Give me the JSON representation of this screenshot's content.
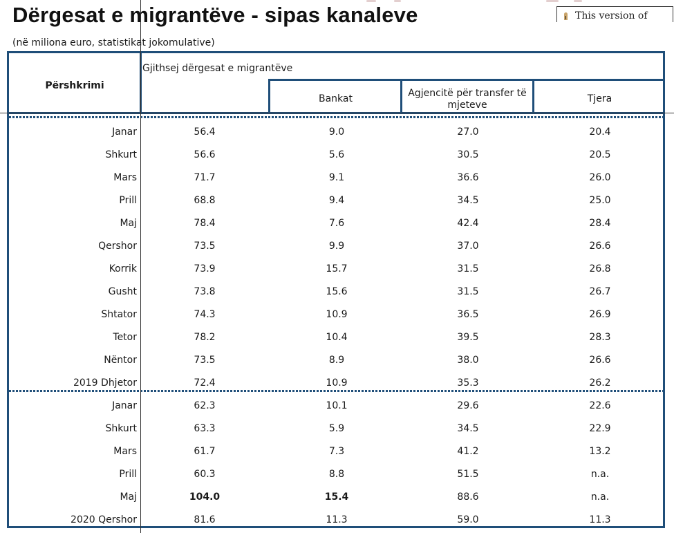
{
  "title": "Dërgesat e migrantëve - sipas kanaleve",
  "subtitle": "(në miliona euro, statistikat jokomulative)",
  "version_notice": {
    "icon": "lock-icon",
    "text": "This version of"
  },
  "table": {
    "header": {
      "description": "Përshkrimi",
      "group": "Gjithsej dërgesat e migrantëve",
      "columns": [
        "Bankat",
        "Agjencitë për transfer të mjeteve",
        "Tjera"
      ]
    },
    "colors": {
      "border": "#1f4e79"
    },
    "sections": [
      {
        "rows": [
          {
            "label": "Janar",
            "total": "56.4",
            "bankat": "9.0",
            "agjencite": "27.0",
            "tjera": "20.4"
          },
          {
            "label": "Shkurt",
            "total": "56.6",
            "bankat": "5.6",
            "agjencite": "30.5",
            "tjera": "20.5"
          },
          {
            "label": "Mars",
            "total": "71.7",
            "bankat": "9.1",
            "agjencite": "36.6",
            "tjera": "26.0"
          },
          {
            "label": "Prill",
            "total": "68.8",
            "bankat": "9.4",
            "agjencite": "34.5",
            "tjera": "25.0"
          },
          {
            "label": "Maj",
            "total": "78.4",
            "bankat": "7.6",
            "agjencite": "42.4",
            "tjera": "28.4"
          },
          {
            "label": "Qershor",
            "total": "73.5",
            "bankat": "9.9",
            "agjencite": "37.0",
            "tjera": "26.6"
          },
          {
            "label": "Korrik",
            "total": "73.9",
            "bankat": "15.7",
            "agjencite": "31.5",
            "tjera": "26.8"
          },
          {
            "label": "Gusht",
            "total": "73.8",
            "bankat": "15.6",
            "agjencite": "31.5",
            "tjera": "26.7"
          },
          {
            "label": "Shtator",
            "total": "74.3",
            "bankat": "10.9",
            "agjencite": "36.5",
            "tjera": "26.9"
          },
          {
            "label": "Tetor",
            "total": "78.2",
            "bankat": "10.4",
            "agjencite": "39.5",
            "tjera": "28.3"
          },
          {
            "label": "Nëntor",
            "total": "73.5",
            "bankat": "8.9",
            "agjencite": "38.0",
            "tjera": "26.6"
          },
          {
            "label": "2019 Dhjetor",
            "total": "72.4",
            "bankat": "10.9",
            "agjencite": "35.3",
            "tjera": "26.2"
          }
        ]
      },
      {
        "rows": [
          {
            "label": "Janar",
            "total": "62.3",
            "bankat": "10.1",
            "agjencite": "29.6",
            "tjera": "22.6"
          },
          {
            "label": "Shkurt",
            "total": "63.3",
            "bankat": "5.9",
            "agjencite": "34.5",
            "tjera": "22.9"
          },
          {
            "label": "Mars",
            "total": "61.7",
            "bankat": "7.3",
            "agjencite": "41.2",
            "tjera": "13.2"
          },
          {
            "label": "Prill",
            "total": "60.3",
            "bankat": "8.8",
            "agjencite": "51.5",
            "tjera": "n.a."
          },
          {
            "label": "Maj",
            "total": "104.0",
            "bankat": "15.4",
            "agjencite": "88.6",
            "tjera": "n.a.",
            "bold_total": true,
            "bold_bankat": true
          },
          {
            "label": "2020  Qershor",
            "total": "81.6",
            "bankat": "11.3",
            "agjencite": "59.0",
            "tjera": "11.3"
          }
        ]
      }
    ]
  }
}
